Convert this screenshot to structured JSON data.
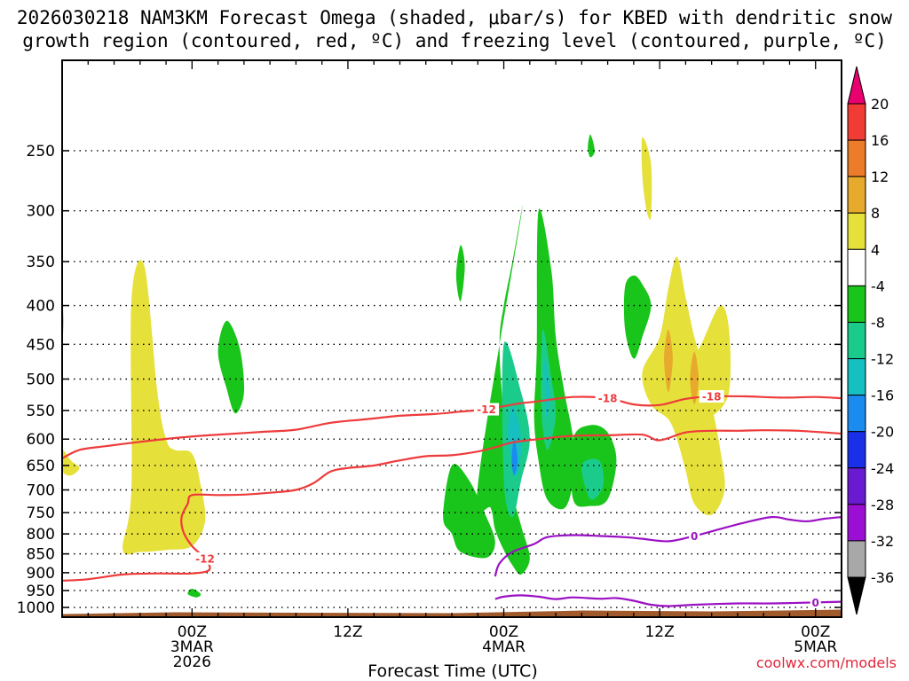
{
  "chart_data": {
    "type": "time-height cross section",
    "title": "2026030218 NAM3KM Forecast Omega (shaded, μbar/s) for KBED with dendritic snow",
    "title_line2": "growth region (contoured, red, ºC) and freezing level (contoured, purple, ºC)",
    "xlabel": "Forecast Time (UTC)",
    "ylabel": "",
    "credit": "coolwx.com/models",
    "x_range_hours": [
      -15,
      75
    ],
    "y_range_mb": [
      190,
      1030
    ],
    "pressure_levels": [
      250,
      300,
      350,
      400,
      450,
      500,
      550,
      600,
      650,
      700,
      750,
      800,
      850,
      900,
      950,
      1000
    ],
    "time_ticks": [
      {
        "hour": 0,
        "label": "00Z",
        "date": "3MAR",
        "year": "2026"
      },
      {
        "hour": 18,
        "label": "12Z",
        "date": "",
        "year": ""
      },
      {
        "hour": 36,
        "label": "00Z",
        "date": "4MAR",
        "year": ""
      },
      {
        "hour": 54,
        "label": "12Z",
        "date": "",
        "year": ""
      },
      {
        "hour": 72,
        "label": "00Z",
        "date": "5MAR",
        "year": ""
      }
    ],
    "colorbar": {
      "labels": [
        "20",
        "16",
        "12",
        "8",
        "4",
        "-4",
        "-8",
        "-12",
        "-16",
        "-20",
        "-24",
        "-28",
        "-32",
        "-36"
      ],
      "colors": [
        "#e8006f",
        "#f03c34",
        "#ec7c2a",
        "#e7aa2c",
        "#e6e03a",
        "#ffffff",
        "#19c51a",
        "#1acb8c",
        "#17c0c0",
        "#1a8cf0",
        "#1a30e8",
        "#6a1ad0",
        "#9b0fd4",
        "#a8a8a8",
        "#000000"
      ]
    },
    "contours": [
      {
        "name": "dendritic growth region -12 C (low)",
        "color": "#ee3b3b",
        "label": "-12",
        "points": [
          [
            -15,
            922
          ],
          [
            -12,
            918
          ],
          [
            -8,
            905
          ],
          [
            -4,
            902
          ],
          [
            0,
            902
          ],
          [
            2,
            892
          ],
          [
            1.5,
            862
          ],
          [
            0,
            830
          ],
          [
            -1,
            795
          ],
          [
            -1.2,
            760
          ],
          [
            -0.5,
            730
          ],
          [
            0,
            711
          ],
          [
            3,
            711
          ],
          [
            6,
            710
          ],
          [
            9,
            706
          ],
          [
            12,
            700
          ],
          [
            14,
            686
          ],
          [
            16,
            662
          ],
          [
            18,
            655
          ],
          [
            21,
            650
          ],
          [
            24,
            640
          ],
          [
            27,
            632
          ],
          [
            30,
            630
          ],
          [
            33,
            623
          ],
          [
            35,
            615
          ],
          [
            37,
            606
          ],
          [
            40,
            600
          ],
          [
            44,
            594
          ],
          [
            48,
            593
          ],
          [
            52,
            592
          ],
          [
            54,
            602
          ],
          [
            57,
            588
          ],
          [
            60,
            585
          ],
          [
            63,
            585
          ],
          [
            66,
            584
          ],
          [
            70,
            585
          ],
          [
            75,
            590
          ]
        ]
      },
      {
        "name": "dendritic growth region -12 C (upper)",
        "color": "#ee3b3b",
        "label": "-12",
        "points": [
          [
            -15,
            636
          ],
          [
            -13,
            620
          ],
          [
            -10,
            613
          ],
          [
            -6,
            605
          ],
          [
            -2,
            598
          ],
          [
            1,
            594
          ],
          [
            4,
            591
          ],
          [
            8,
            587
          ],
          [
            12,
            583
          ],
          [
            16,
            571
          ],
          [
            20,
            565
          ],
          [
            24,
            559
          ],
          [
            28,
            556
          ],
          [
            31,
            552
          ],
          [
            34,
            548
          ],
          [
            36,
            543
          ],
          [
            38,
            538
          ],
          [
            40,
            535
          ]
        ]
      },
      {
        "name": "dendritic growth region -18 C",
        "color": "#ee3b3b",
        "label": "-18",
        "points": [
          [
            40,
            535
          ],
          [
            44,
            528
          ],
          [
            48,
            530
          ],
          [
            51,
            540
          ],
          [
            54,
            541
          ],
          [
            57,
            531
          ],
          [
            60,
            527
          ],
          [
            64,
            527
          ],
          [
            68,
            529
          ],
          [
            72,
            528
          ],
          [
            75,
            530
          ]
        ]
      },
      {
        "name": "freezing level 0 C",
        "color": "#9b11c4",
        "label": "0",
        "points": [
          [
            35,
            910
          ],
          [
            35.5,
            875
          ],
          [
            37,
            845
          ],
          [
            39.5,
            825
          ],
          [
            41,
            808
          ],
          [
            44,
            803
          ],
          [
            47,
            805
          ],
          [
            50,
            808
          ],
          [
            52,
            812
          ],
          [
            55,
            818
          ],
          [
            58,
            805
          ],
          [
            61,
            788
          ],
          [
            64,
            772
          ],
          [
            67,
            760
          ],
          [
            69,
            766
          ],
          [
            71,
            770
          ],
          [
            73,
            764
          ],
          [
            75,
            760
          ]
        ]
      },
      {
        "name": "freezing level 0 C (low)",
        "color": "#9b11c4",
        "label": "0",
        "points": [
          [
            35,
            975
          ],
          [
            36,
            968
          ],
          [
            38,
            964
          ],
          [
            40,
            968
          ],
          [
            42,
            975
          ],
          [
            44,
            970
          ],
          [
            47,
            974
          ],
          [
            49,
            972
          ],
          [
            51,
            980
          ],
          [
            53,
            992
          ],
          [
            55,
            996
          ],
          [
            58,
            992
          ],
          [
            63,
            988
          ],
          [
            67,
            988
          ],
          [
            72,
            985
          ],
          [
            75,
            983
          ]
        ]
      }
    ],
    "regions": [
      {
        "value": "4",
        "color": "#e6e03a",
        "points": [
          [
            -7,
            395
          ],
          [
            -5.5,
            355
          ],
          [
            -4,
            520
          ],
          [
            -3,
            600
          ],
          [
            -2,
            620
          ],
          [
            0,
            627
          ],
          [
            1,
            690
          ],
          [
            1.5,
            770
          ],
          [
            0,
            830
          ],
          [
            -3,
            840
          ],
          [
            -6,
            845
          ],
          [
            -8,
            838
          ],
          [
            -7,
            700
          ]
        ]
      },
      {
        "value": "4",
        "color": "#e6e03a",
        "points": [
          [
            -15,
            620
          ],
          [
            -14,
            640
          ],
          [
            -13,
            655
          ],
          [
            -14,
            670
          ],
          [
            -15,
            660
          ]
        ]
      },
      {
        "value": "-4",
        "color": "#19c51a",
        "points": [
          [
            4,
            419
          ],
          [
            5.5,
            455
          ],
          [
            6,
            520
          ],
          [
            5,
            555
          ],
          [
            4,
            515
          ],
          [
            3,
            460
          ]
        ]
      },
      {
        "value": "-4",
        "color": "#19c51a",
        "points": [
          [
            33,
            690
          ],
          [
            34.5,
            740
          ],
          [
            35,
            790
          ],
          [
            36,
            840
          ],
          [
            37,
            880
          ],
          [
            38,
            905
          ],
          [
            39,
            860
          ],
          [
            38,
            780
          ],
          [
            37,
            700
          ],
          [
            36,
            560
          ],
          [
            35.5,
            450
          ],
          [
            36,
            400
          ],
          [
            37,
            350
          ],
          [
            38,
            305
          ]
        ]
      },
      {
        "value": "-4",
        "color": "#19c51a",
        "points": [
          [
            30,
            650
          ],
          [
            32,
            680
          ],
          [
            34,
            760
          ],
          [
            35,
            820
          ],
          [
            34,
            860
          ],
          [
            31,
            845
          ],
          [
            30,
            800
          ],
          [
            29,
            760
          ]
        ]
      },
      {
        "value": "-8",
        "color": "#1acb8c",
        "points": [
          [
            36,
            450
          ],
          [
            38,
            520
          ],
          [
            39,
            600
          ],
          [
            38,
            680
          ],
          [
            37,
            760
          ],
          [
            36,
            680
          ]
        ]
      },
      {
        "value": "-12",
        "color": "#17c0c0",
        "points": [
          [
            37,
            540
          ],
          [
            38,
            600
          ],
          [
            37.5,
            670
          ],
          [
            36.5,
            600
          ]
        ]
      },
      {
        "value": "-16",
        "color": "#1a8cf0",
        "points": [
          [
            37.2,
            600
          ],
          [
            37.6,
            640
          ],
          [
            37.2,
            670
          ],
          [
            36.9,
            640
          ]
        ]
      },
      {
        "value": "-4",
        "color": "#19c51a",
        "points": [
          [
            40,
            300
          ],
          [
            41.5,
            360
          ],
          [
            42,
            440
          ],
          [
            43,
            520
          ],
          [
            44,
            600
          ],
          [
            44,
            680
          ],
          [
            43,
            740
          ],
          [
            41,
            720
          ],
          [
            40,
            640
          ],
          [
            39.5,
            560
          ],
          [
            39.8,
            460
          ]
        ]
      },
      {
        "value": "-8",
        "color": "#1acb8c",
        "points": [
          [
            40.5,
            430
          ],
          [
            41.5,
            500
          ],
          [
            42,
            560
          ],
          [
            41,
            620
          ],
          [
            40.3,
            540
          ]
        ]
      },
      {
        "value": "-12",
        "color": "#17c0c0",
        "points": [
          [
            40.7,
            470
          ],
          [
            41.3,
            520
          ],
          [
            40.9,
            560
          ]
        ]
      },
      {
        "value": "-4",
        "color": "#19c51a",
        "points": [
          [
            44,
            600
          ],
          [
            46,
            575
          ],
          [
            48,
            588
          ],
          [
            49,
            640
          ],
          [
            48,
            720
          ],
          [
            46,
            735
          ],
          [
            44,
            720
          ]
        ]
      },
      {
        "value": "-8",
        "color": "#1acb8c",
        "points": [
          [
            45,
            650
          ],
          [
            47,
            640
          ],
          [
            47.5,
            690
          ],
          [
            46,
            720
          ]
        ]
      },
      {
        "value": "-4",
        "color": "#19c51a",
        "points": [
          [
            50,
            378
          ],
          [
            51,
            365
          ],
          [
            52,
            375
          ],
          [
            53,
            400
          ],
          [
            52,
            440
          ],
          [
            51,
            470
          ],
          [
            50,
            430
          ]
        ]
      },
      {
        "value": "-4",
        "color": "#19c51a",
        "points": [
          [
            31,
            333
          ],
          [
            31.5,
            355
          ],
          [
            31,
            395
          ],
          [
            30.5,
            365
          ]
        ]
      },
      {
        "value": "4",
        "color": "#e6e03a",
        "points": [
          [
            52,
            490
          ],
          [
            54,
            440
          ],
          [
            55,
            380
          ],
          [
            56,
            345
          ],
          [
            57,
            390
          ],
          [
            58,
            440
          ],
          [
            59,
            480
          ],
          [
            60,
            540
          ],
          [
            61,
            620
          ],
          [
            61.5,
            700
          ],
          [
            60,
            755
          ],
          [
            58,
            730
          ],
          [
            57,
            660
          ],
          [
            56,
            600
          ],
          [
            55,
            565
          ],
          [
            53,
            540
          ]
        ]
      },
      {
        "value": "4",
        "color": "#e6e03a",
        "points": [
          [
            57,
            500
          ],
          [
            59,
            445
          ],
          [
            61,
            400
          ],
          [
            62,
            430
          ],
          [
            62,
            520
          ],
          [
            60,
            560
          ],
          [
            58,
            560
          ]
        ]
      },
      {
        "value": "8",
        "color": "#e7aa2c",
        "points": [
          [
            55,
            430
          ],
          [
            55.5,
            470
          ],
          [
            55,
            520
          ],
          [
            54.5,
            470
          ]
        ]
      },
      {
        "value": "8",
        "color": "#e7aa2c",
        "points": [
          [
            58,
            460
          ],
          [
            58.5,
            500
          ],
          [
            58,
            540
          ],
          [
            57.5,
            500
          ]
        ]
      },
      {
        "value": "4",
        "color": "#e6e03a",
        "points": [
          [
            52,
            240
          ],
          [
            53,
            260
          ],
          [
            53,
            305
          ],
          [
            52.5,
            300
          ],
          [
            52,
            270
          ]
        ]
      },
      {
        "value": "-4",
        "color": "#19c51a",
        "points": [
          [
            46,
            238
          ],
          [
            46.5,
            250
          ],
          [
            46,
            255
          ],
          [
            45.7,
            248
          ]
        ]
      },
      {
        "value": "-4",
        "color": "#19c51a",
        "points": [
          [
            0,
            945
          ],
          [
            1,
            960
          ],
          [
            0.5,
            970
          ],
          [
            -0.5,
            960
          ]
        ]
      },
      {
        "value": "4",
        "color": "#e6e03a",
        "points": [
          [
            -15,
            395
          ],
          [
            -14.8,
            420
          ],
          [
            -15,
            440
          ]
        ]
      }
    ],
    "ground": {
      "color": "#a05a2c",
      "mb": 1015
    }
  }
}
